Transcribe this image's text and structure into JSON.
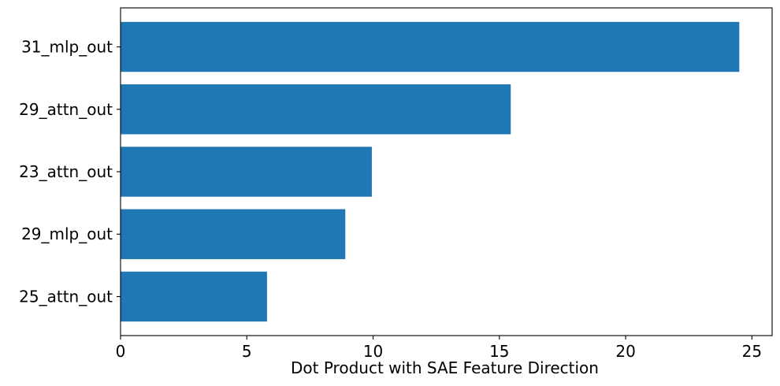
{
  "chart_data": {
    "type": "bar",
    "orientation": "horizontal",
    "categories": [
      "31_mlp_out",
      "29_attn_out",
      "23_attn_out",
      "29_mlp_out",
      "25_attn_out"
    ],
    "values": [
      24.5,
      15.45,
      9.95,
      8.9,
      5.8
    ],
    "title": "",
    "xlabel": "Dot Product with SAE Feature Direction",
    "ylabel": "",
    "xlim": [
      0,
      25.8
    ],
    "xticks": [
      0,
      5,
      10,
      15,
      20,
      25
    ],
    "xtick_labels": [
      "0",
      "5",
      "10",
      "15",
      "20",
      "25"
    ],
    "bar_color": "#1f77b4",
    "grid": false,
    "legend": "none"
  }
}
